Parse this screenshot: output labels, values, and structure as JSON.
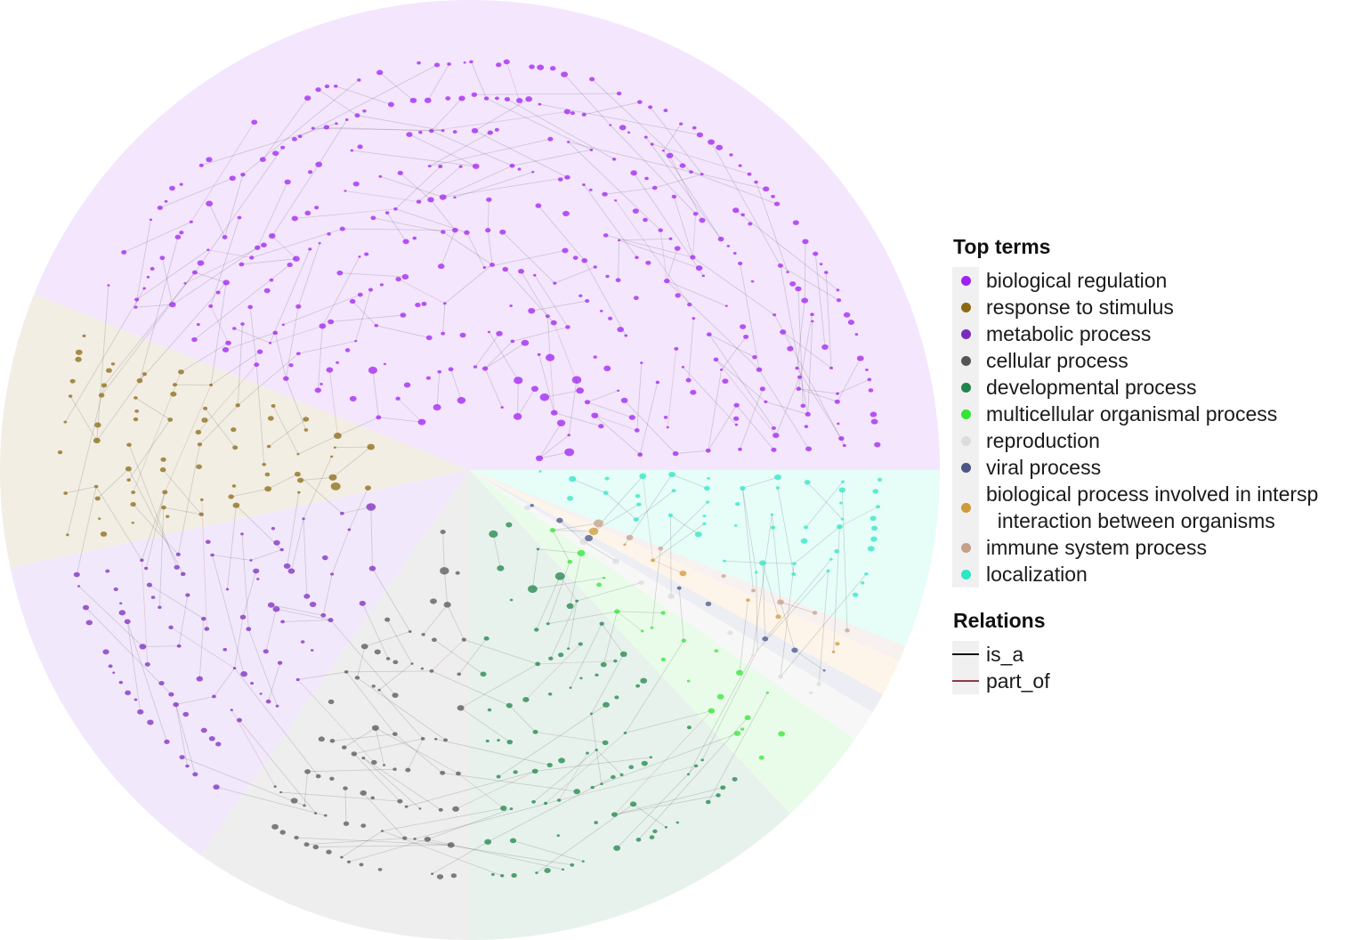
{
  "legend": {
    "top_terms_title": "Top terms",
    "top_terms": [
      {
        "label": "biological regulation",
        "color": "#a020f0"
      },
      {
        "label": "response to stimulus",
        "color": "#8b6914"
      },
      {
        "label": "metabolic process",
        "color": "#7b2cbf"
      },
      {
        "label": "cellular process",
        "color": "#555555"
      },
      {
        "label": "developmental process",
        "color": "#1e8449"
      },
      {
        "label": "multicellular organismal process",
        "color": "#32e632"
      },
      {
        "label": "reproduction",
        "color": "#dcdcdc"
      },
      {
        "label": "viral process",
        "color": "#4a5585"
      },
      {
        "label": "biological process involved in intersp\n  interaction between organisms",
        "color": "#cd9b3b"
      },
      {
        "label": "immune system process",
        "color": "#c4a088"
      },
      {
        "label": "localization",
        "color": "#2ee6c6"
      }
    ],
    "relations_title": "Relations",
    "relations": [
      {
        "label": "is_a",
        "color": "#111111"
      },
      {
        "label": "part_of",
        "color": "#8b3a4a"
      }
    ]
  },
  "sectors": [
    {
      "term": "biological regulation",
      "fill": "#f3e6fd"
    },
    {
      "term": "response to stimulus",
      "fill": "#f2eee4"
    },
    {
      "term": "metabolic process",
      "fill": "#f2e8fb"
    },
    {
      "term": "cellular process",
      "fill": "#eeeeee"
    },
    {
      "term": "developmental process",
      "fill": "#e7f2ec"
    },
    {
      "term": "multicellular organismal process",
      "fill": "#e9fcea"
    },
    {
      "term": "reproduction",
      "fill": "#f7f7f7"
    },
    {
      "term": "viral process",
      "fill": "#eceef3"
    },
    {
      "term": "biological process involved in interspecies interaction between organisms",
      "fill": "#fdf4ea"
    },
    {
      "term": "immune system process",
      "fill": "#f7f1ef"
    },
    {
      "term": "localization",
      "fill": "#e6fdf8"
    }
  ]
}
